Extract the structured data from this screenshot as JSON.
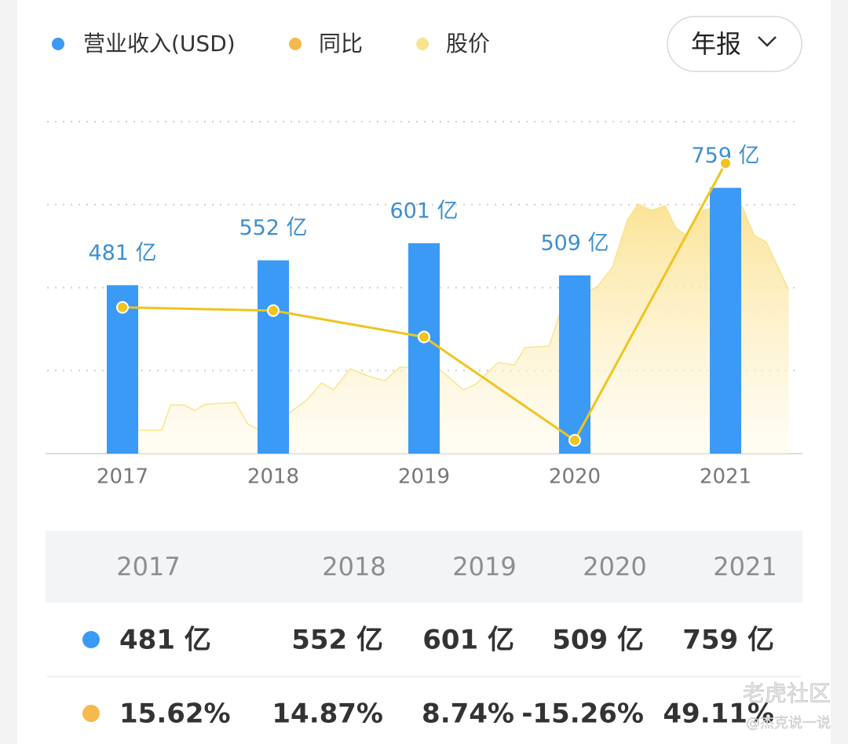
{
  "chart_data": {
    "type": "bar-line-area",
    "categories": [
      "2017",
      "2018",
      "2019",
      "2020",
      "2021"
    ],
    "xlim": [
      2016.5,
      2021.5
    ],
    "ylim": [
      0,
      948
    ],
    "yticks": [
      0,
      237,
      474,
      711,
      948
    ],
    "grid": true,
    "y2lim": [
      -18.36,
      58.77
    ],
    "series": [
      {
        "name": "营业收入(USD)",
        "color": "#3a9af5",
        "values": [
          481,
          552,
          601,
          509,
          759
        ],
        "value_labels": [
          "481 亿",
          "552 亿",
          "601 亿",
          "509 亿",
          "759 亿"
        ]
      },
      {
        "name": "同比",
        "color": "#f6b94e",
        "line_color": "#efc41f",
        "axis": "y2",
        "values": [
          15.62,
          14.87,
          8.74,
          -15.26,
          49.11
        ]
      },
      {
        "name": "股价",
        "color": "#f9e38d",
        "x": [
          2017.1,
          2017.26,
          2017.32,
          2017.41,
          2017.48,
          2017.55,
          2017.75,
          2017.83,
          2017.91,
          2018.1,
          2018.22,
          2018.32,
          2018.4,
          2018.51,
          2018.64,
          2018.74,
          2018.84,
          2019.1,
          2019.26,
          2019.34,
          2019.49,
          2019.6,
          2019.67,
          2019.83,
          2019.9,
          2020.04,
          2020.15,
          2020.25,
          2020.35,
          2020.42,
          2020.51,
          2020.6,
          2020.67,
          2020.74,
          2020.85,
          2020.98,
          2021.11,
          2021.19,
          2021.27,
          2021.42
        ],
        "values": [
          67,
          67,
          139,
          139,
          123,
          141,
          146,
          85,
          67,
          114,
          152,
          202,
          182,
          242,
          220,
          208,
          247,
          242,
          182,
          197,
          260,
          253,
          303,
          307,
          399,
          453,
          477,
          533,
          668,
          713,
          695,
          708,
          645,
          623,
          695,
          708,
          706,
          623,
          605,
          466
        ]
      }
    ]
  },
  "dropdown": {
    "label": "年报"
  },
  "table": {
    "header": [
      "2017",
      "2018",
      "2019",
      "2020",
      "2021"
    ],
    "rows": [
      {
        "marker_color": "#3a9af5",
        "cells": [
          "481 亿",
          "552 亿",
          "601 亿",
          "509 亿",
          "759 亿"
        ]
      },
      {
        "marker_color": "#f6b94e",
        "cells": [
          "15.62%",
          "14.87%",
          "8.74%",
          "-15.26%",
          "49.11%"
        ]
      }
    ]
  },
  "watermark": {
    "brand": "老虎社区",
    "author": "@杰克说一说"
  }
}
